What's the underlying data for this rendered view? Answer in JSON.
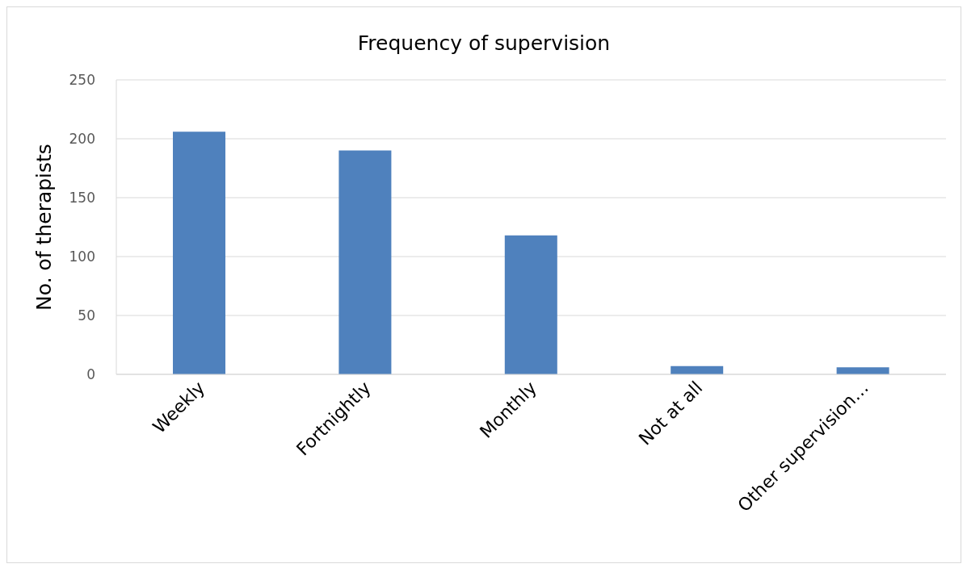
{
  "chart_data": {
    "type": "bar",
    "title": "Frequency of supervision",
    "ylabel": "No. of therapists",
    "categories": [
      "Weekly",
      "Fortnightly",
      "Monthly",
      "Not at all",
      "Other supervision…"
    ],
    "values": [
      206,
      190,
      118,
      7,
      6
    ],
    "color": "#4f81bd",
    "ylim": [
      0,
      250
    ],
    "yticks": [
      0,
      50,
      100,
      150,
      200,
      250
    ],
    "grid": "y",
    "legend": false
  }
}
